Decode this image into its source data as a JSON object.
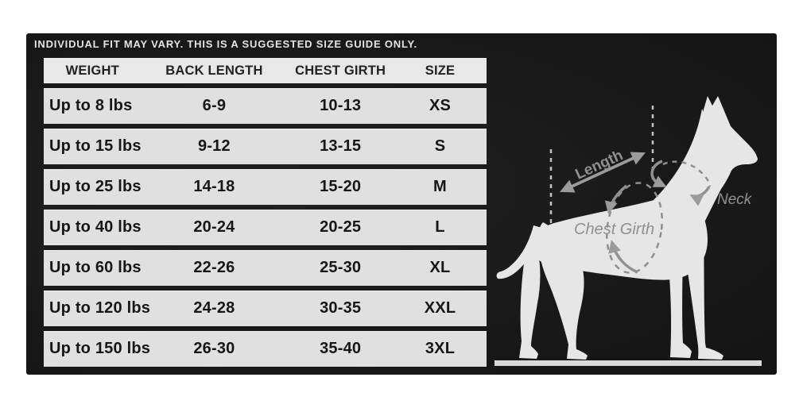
{
  "disclaimer": "INDIVIDUAL FIT MAY VARY. THIS IS A SUGGESTED SIZE GUIDE ONLY.",
  "table": {
    "headers": [
      "WEIGHT",
      "BACK LENGTH",
      "CHEST GIRTH",
      "SIZE"
    ],
    "rows": [
      [
        "Up to 8 lbs",
        "6-9",
        "10-13",
        "XS"
      ],
      [
        "Up to 15 lbs",
        "9-12",
        "13-15",
        "S"
      ],
      [
        "Up to 25 lbs",
        "14-18",
        "15-20",
        "M"
      ],
      [
        "Up to 40 lbs",
        "20-24",
        "20-25",
        "L"
      ],
      [
        "Up to 60 lbs",
        "22-26",
        "25-30",
        "XL"
      ],
      [
        "Up to 120 lbs",
        "24-28",
        "30-35",
        "XXL"
      ],
      [
        "Up to 150 lbs",
        "26-30",
        "35-40",
        "3XL"
      ]
    ]
  },
  "diagram": {
    "length_label": "Length",
    "neck_label": "Neck",
    "chest_girth_label": "Chest Girth"
  },
  "chart_data": {
    "type": "table",
    "title": "INDIVIDUAL FIT MAY VARY. THIS IS A SUGGESTED SIZE GUIDE ONLY.",
    "columns": [
      "WEIGHT",
      "BACK LENGTH",
      "CHEST GIRTH",
      "SIZE"
    ],
    "rows": [
      [
        "Up to 8 lbs",
        "6-9",
        "10-13",
        "XS"
      ],
      [
        "Up to 15 lbs",
        "9-12",
        "13-15",
        "S"
      ],
      [
        "Up to 25 lbs",
        "14-18",
        "15-20",
        "M"
      ],
      [
        "Up to 40 lbs",
        "20-24",
        "20-25",
        "L"
      ],
      [
        "Up to 60 lbs",
        "22-26",
        "25-30",
        "XL"
      ],
      [
        "Up to 120 lbs",
        "24-28",
        "30-35",
        "XXL"
      ],
      [
        "Up to 150 lbs",
        "26-30",
        "35-40",
        "3XL"
      ]
    ],
    "annotations": [
      "Length",
      "Neck",
      "Chest Girth"
    ]
  },
  "colors": {
    "panel_bg": "#191919",
    "row_bg": "#e0e0e0",
    "header_bg": "#e8e8e8",
    "table_text": "#161616",
    "caption_text": "#e4e4e4",
    "silhouette": "#e6e6e6",
    "annotation_gray": "#8f8f8f",
    "dashed_guide": "#c2c2c2"
  }
}
